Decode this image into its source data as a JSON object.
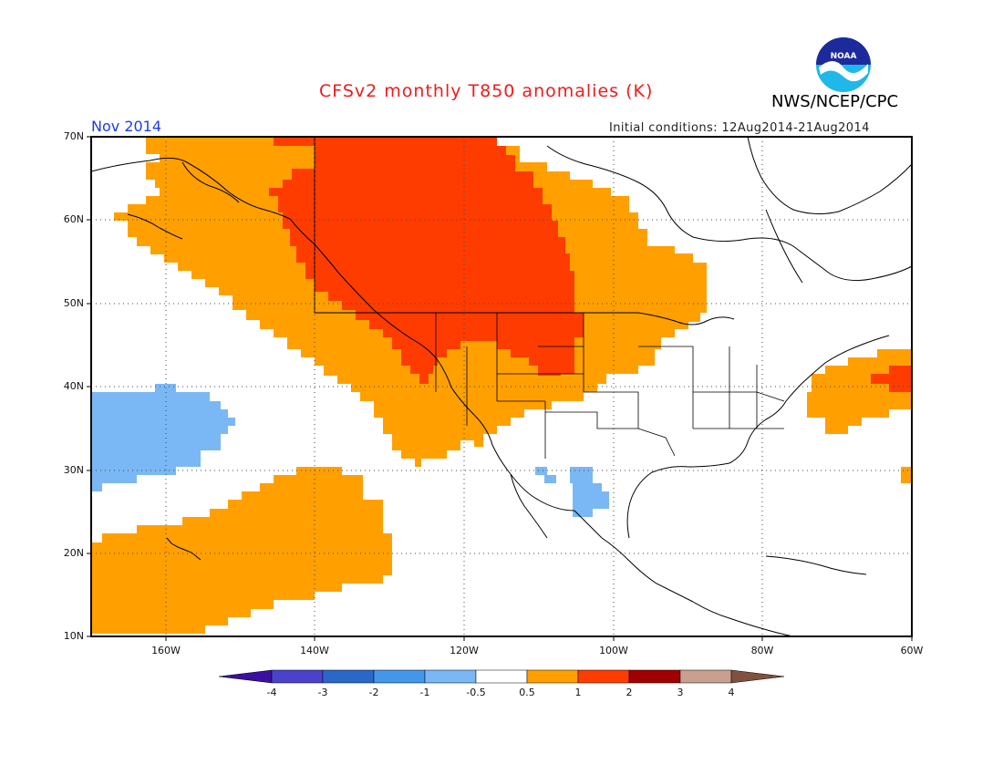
{
  "header": {
    "title": "CFSv2 monthly T850 anomalies (K)",
    "org": "NWS/NCEP/CPC",
    "logo_text": "NOAA",
    "period": "Nov 2014",
    "initial_conditions": "Initial conditions: 12Aug2014-21Aug2014"
  },
  "axes": {
    "lat_labels": [
      "70N",
      "60N",
      "50N",
      "40N",
      "30N",
      "20N",
      "10N"
    ],
    "lon_labels": [
      "160W",
      "140W",
      "120W",
      "100W",
      "80W",
      "60W"
    ]
  },
  "colorbar": {
    "labels": [
      "-4",
      "-3",
      "-2",
      "-1",
      "-0.5",
      "0.5",
      "1",
      "2",
      "3",
      "4"
    ],
    "colors": [
      "#3b0fa0",
      "#4a42cc",
      "#2a68c8",
      "#4297e8",
      "#7ab8f5",
      "#ffffff",
      "#ffa000",
      "#ff3c00",
      "#a00000",
      "#c8a090",
      "#805040"
    ]
  },
  "map_data": {
    "extent": {
      "lon": [
        -170,
        -60
      ],
      "lat": [
        10,
        70
      ]
    },
    "regions": [
      {
        "name": "warm-anomaly-north-america",
        "class": "0.5 to 1"
      },
      {
        "name": "strong-warm-anomaly-canada",
        "class": "1 to 2"
      },
      {
        "name": "warm-anomaly-subtropical-pacific",
        "class": "0.5 to 1"
      },
      {
        "name": "warm-anomaly-western-atlantic",
        "class": "0.5 to 1"
      },
      {
        "name": "cold-anomaly-central-pacific",
        "class": "-1 to -0.5"
      },
      {
        "name": "cold-anomaly-northern-mexico",
        "class": "-1 to -0.5"
      }
    ]
  }
}
